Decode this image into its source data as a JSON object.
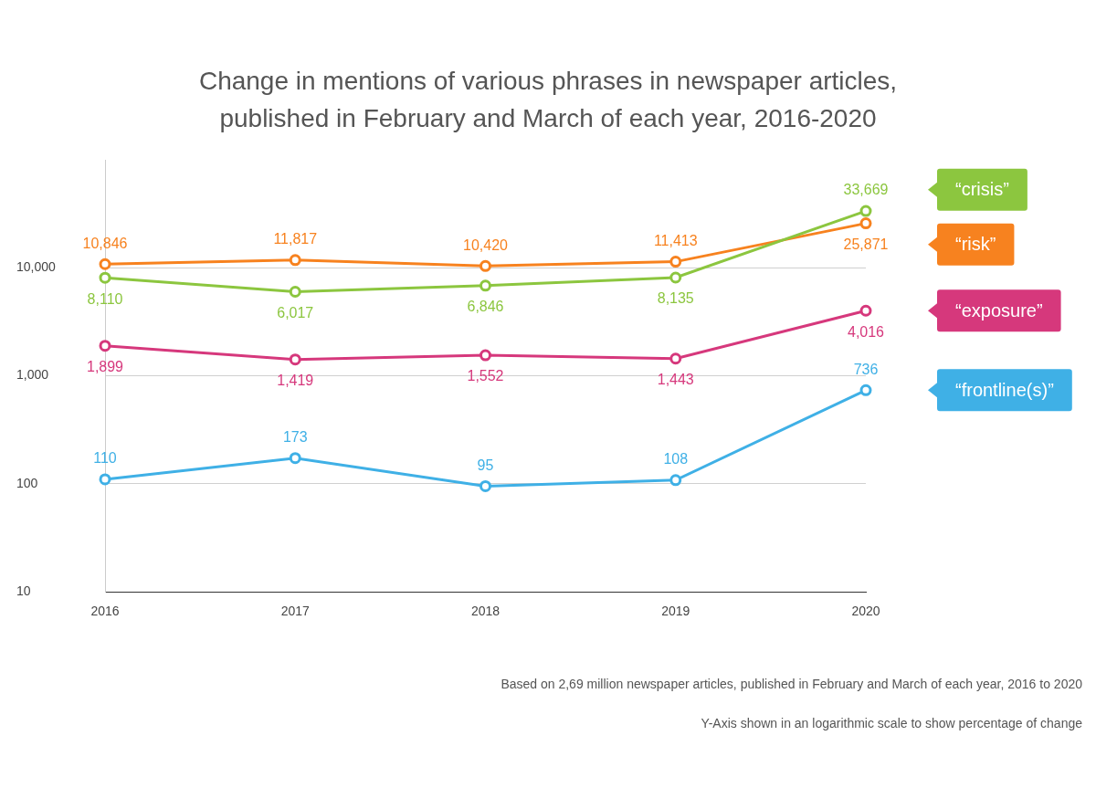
{
  "chart_data": {
    "type": "line",
    "title": [
      "Change in mentions of various phrases in newspaper articles,",
      "published in February and March of each year, 2016-2020"
    ],
    "categories": [
      "2016",
      "2017",
      "2018",
      "2019",
      "2020"
    ],
    "series": [
      {
        "name": "“crisis”",
        "color": "#8cc63f",
        "values": [
          8110,
          6017,
          6846,
          8135,
          33669
        ],
        "value_labels": [
          "8,110",
          "6,017",
          "6,846",
          "8,135",
          "33,669"
        ]
      },
      {
        "name": "“risk”",
        "color": "#f7821f",
        "values": [
          10846,
          11817,
          10420,
          11413,
          25871
        ],
        "value_labels": [
          "10,846",
          "11,817",
          "10,420",
          "11,413",
          "25,871"
        ]
      },
      {
        "name": "“exposure”",
        "color": "#d6387c",
        "values": [
          1899,
          1419,
          1552,
          1443,
          4016
        ],
        "value_labels": [
          "1,899",
          "1,419",
          "1,552",
          "1,443",
          "4,016"
        ]
      },
      {
        "name": "“frontline(s)”",
        "color": "#3fb0e6",
        "values": [
          110,
          173,
          95,
          108,
          736
        ],
        "value_labels": [
          "110",
          "173",
          "95",
          "108",
          "736"
        ]
      }
    ],
    "log": "y",
    "ylim": [
      10,
      100000
    ],
    "yticks": [
      10,
      100,
      {
        "value": 1000,
        "label": "1,000"
      },
      {
        "value": 10000,
        "label": "10,000"
      }
    ],
    "grid": true,
    "legend": "right",
    "data_labels": true,
    "marker": "circle",
    "annotations": [
      "Based on 2,69 million newspaper articles, published in February and March of each year, 2016 to 2020",
      "Y-Axis shown in an logarithmic scale to show percentage of change"
    ]
  }
}
